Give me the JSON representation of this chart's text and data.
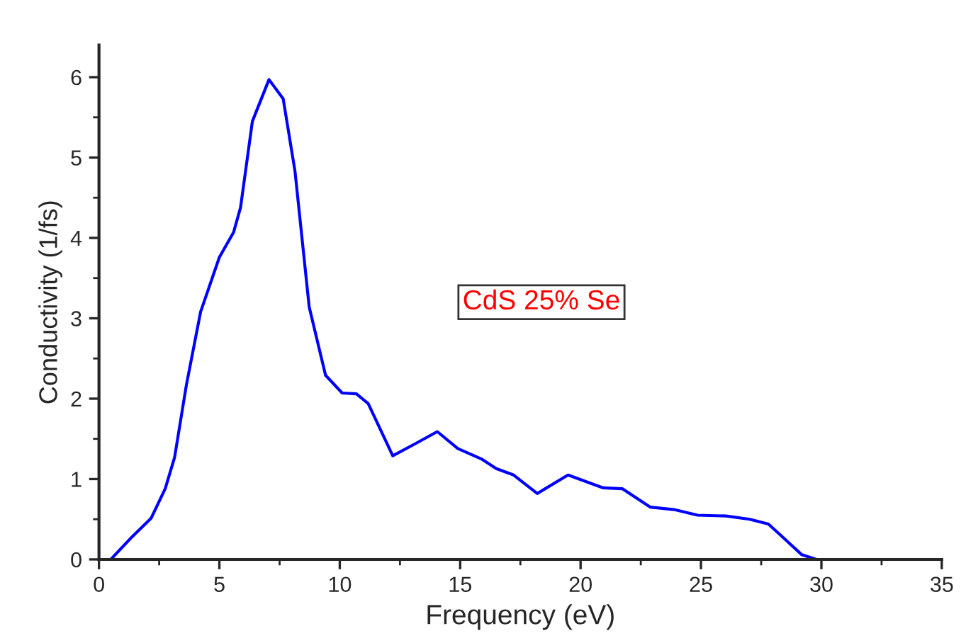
{
  "chart_data": {
    "type": "line",
    "xlabel": "Frequency (eV)",
    "ylabel": "Conductivity (1/fs)",
    "annotations": [
      "CdS 25% Se"
    ],
    "x": [
      0,
      0.49,
      1.37,
      2.16,
      2.75,
      3.14,
      3.63,
      4.22,
      5.0,
      5.59,
      5.88,
      6.37,
      7.06,
      7.65,
      8.14,
      8.73,
      9.41,
      10.1,
      10.69,
      11.18,
      12.2,
      13.14,
      14.05,
      14.9,
      15.88,
      16.5,
      17.22,
      18.2,
      19.48,
      20.94,
      21.73,
      22.9,
      23.88,
      24.86,
      26.04,
      27.02,
      27.8,
      28.49,
      29.18,
      29.8,
      35
    ],
    "series": [
      {
        "color": "#0000ff",
        "values": [
          0,
          0,
          0.28,
          0.51,
          0.88,
          1.27,
          2.17,
          3.08,
          3.76,
          4.07,
          4.38,
          5.45,
          5.97,
          5.73,
          4.83,
          3.14,
          2.29,
          2.07,
          2.06,
          1.94,
          1.29,
          1.44,
          1.59,
          1.38,
          1.25,
          1.13,
          1.05,
          0.82,
          1.05,
          0.89,
          0.88,
          0.65,
          0.62,
          0.55,
          0.54,
          0.5,
          0.44,
          0.25,
          0.06,
          0,
          0
        ]
      }
    ],
    "xlim": [
      0,
      35
    ],
    "ylim": [
      0,
      6.4
    ],
    "xticks": [
      0,
      5,
      10,
      15,
      20,
      25,
      30,
      35
    ],
    "yticks": [
      0,
      1,
      2,
      3,
      4,
      5,
      6
    ],
    "grid": false,
    "legend": false,
    "marker": "none",
    "line_style": "solid"
  }
}
